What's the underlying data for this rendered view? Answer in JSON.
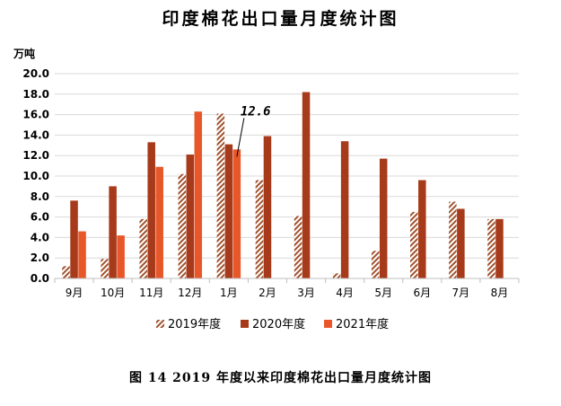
{
  "title": "印度棉花出口量月度统计图",
  "caption": "图 14    2019 年度以来印度棉花出口量月度统计图",
  "chart_data": {
    "type": "bar",
    "title": "印度棉花出口量月度统计图",
    "ylabel": "万吨",
    "xlabel": "",
    "ylim": [
      0,
      20
    ],
    "ytick_step": 2,
    "ytick_labels": [
      "0.0",
      "2.0",
      "4.0",
      "6.0",
      "8.0",
      "10.0",
      "12.0",
      "14.0",
      "16.0",
      "18.0",
      "20.0"
    ],
    "grid": true,
    "legend_position": "bottom",
    "categories": [
      "9月",
      "10月",
      "11月",
      "12月",
      "1月",
      "2月",
      "3月",
      "4月",
      "5月",
      "6月",
      "7月",
      "8月"
    ],
    "series": [
      {
        "name": "2019年度",
        "pattern": "hatched",
        "color": "#A0522D",
        "values": [
          1.2,
          1.9,
          5.8,
          10.2,
          16.1,
          9.6,
          6.1,
          0.5,
          2.7,
          6.5,
          7.5,
          5.8
        ]
      },
      {
        "name": "2020年度",
        "pattern": "solid",
        "color": "#A63A1A",
        "values": [
          7.6,
          9.0,
          13.3,
          12.1,
          13.1,
          13.9,
          18.2,
          13.4,
          11.7,
          9.6,
          6.8,
          5.8
        ]
      },
      {
        "name": "2021年度",
        "pattern": "solid",
        "color": "#E8572A",
        "values": [
          4.6,
          4.2,
          10.9,
          16.3,
          12.6,
          null,
          null,
          null,
          null,
          null,
          null,
          null
        ]
      }
    ],
    "annotations": [
      {
        "text": "12.6",
        "series": "2021年度",
        "category": "1月",
        "value": 12.6
      }
    ]
  }
}
